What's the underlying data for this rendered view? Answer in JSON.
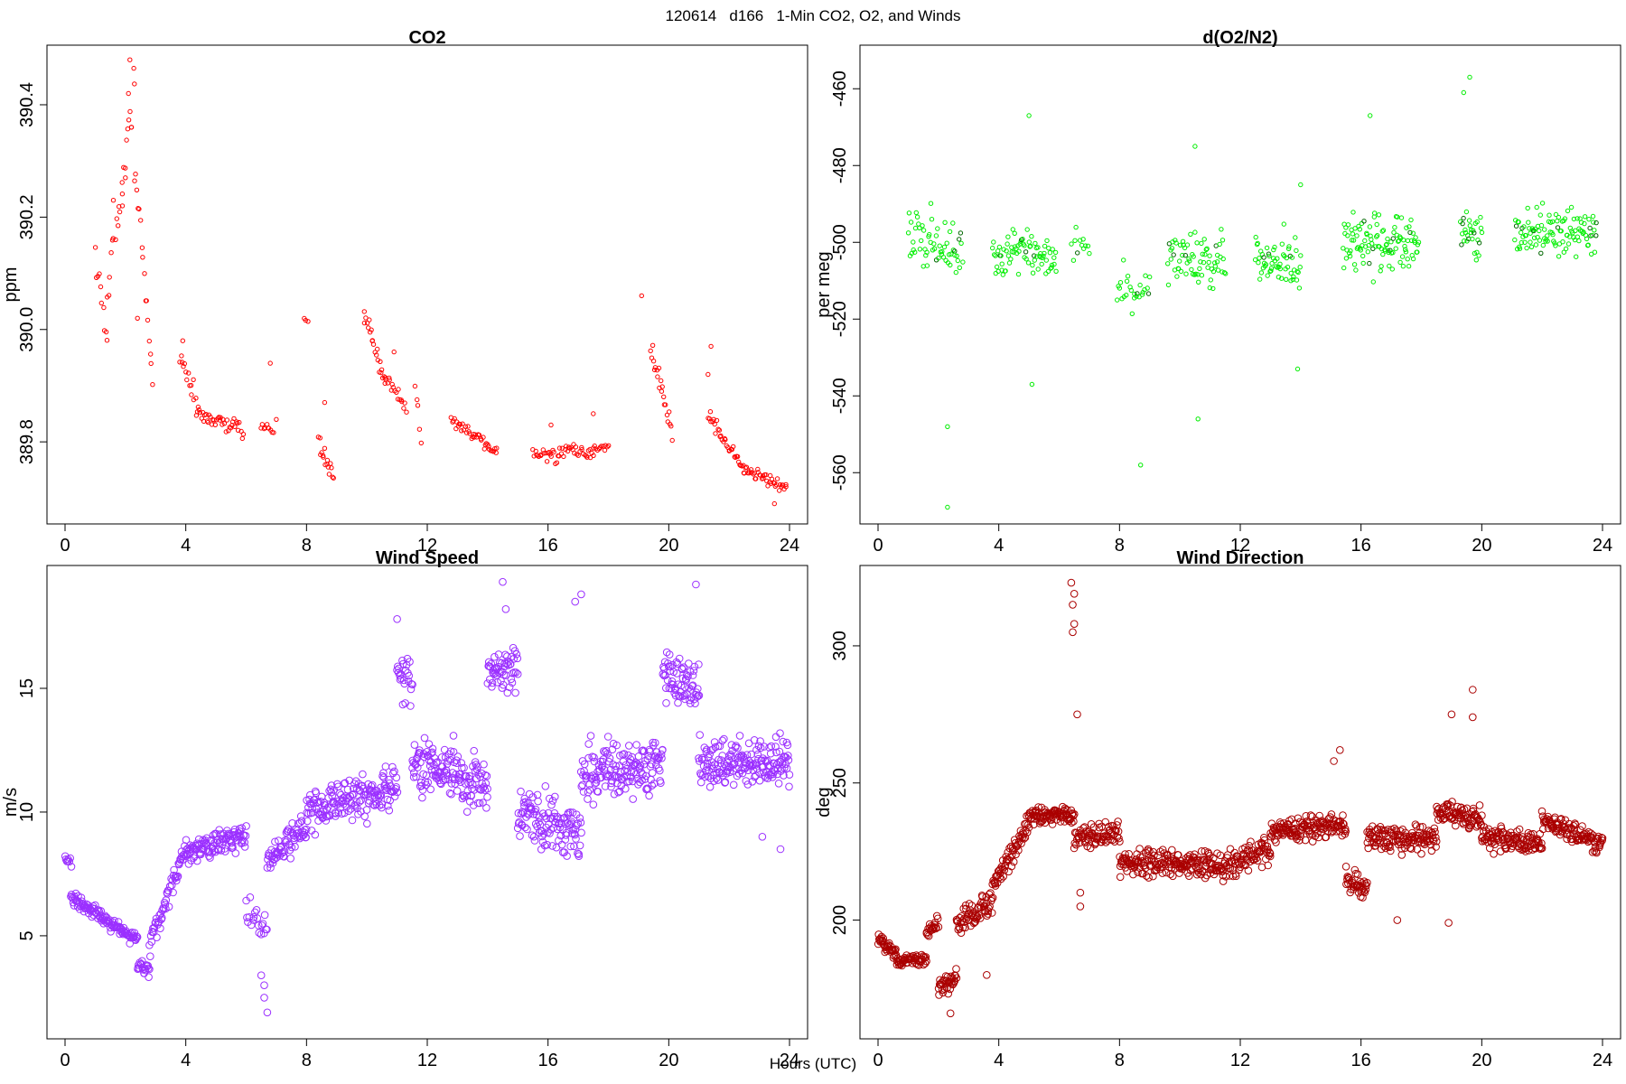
{
  "figure": {
    "title": "120614   d166   1-Min CO2, O2, and Winds",
    "xlabel": "Hours (UTC)"
  },
  "chart_data": [
    {
      "id": "co2",
      "type": "scatter",
      "title": "CO2",
      "xlabel": "",
      "ylabel": "ppm",
      "xlim": [
        0,
        24
      ],
      "ylim": [
        389.67,
        390.49
      ],
      "xticks": [
        0,
        4,
        8,
        12,
        16,
        20,
        24
      ],
      "yticks": [
        389.8,
        390.0,
        390.2,
        390.4
      ],
      "ytick_labels": [
        "389.8",
        "390.0",
        "390.2",
        "390.4"
      ],
      "color": "#ff0000",
      "marker_radius": 2.2,
      "segments": [
        {
          "x0": 1.0,
          "x1": 1.4,
          "n": 10,
          "y0": 390.12,
          "y1": 390.0,
          "spread": 0.05
        },
        {
          "x0": 1.4,
          "x1": 2.3,
          "n": 22,
          "y0": 390.05,
          "y1": 390.45,
          "spread": 0.08
        },
        {
          "x0": 2.3,
          "x1": 2.9,
          "n": 16,
          "y0": 390.3,
          "y1": 389.9,
          "spread": 0.04
        },
        {
          "x0": 3.8,
          "x1": 4.4,
          "n": 16,
          "y0": 389.96,
          "y1": 389.86,
          "spread": 0.03
        },
        {
          "x0": 4.4,
          "x1": 5.9,
          "n": 40,
          "y0": 389.85,
          "y1": 389.82,
          "spread": 0.025
        },
        {
          "x0": 6.5,
          "x1": 6.9,
          "n": 10,
          "y0": 389.83,
          "y1": 389.82,
          "spread": 0.015
        },
        {
          "x0": 7.9,
          "x1": 8.05,
          "n": 3,
          "y0": 390.02,
          "y1": 390.01,
          "spread": 0.01
        },
        {
          "x0": 8.4,
          "x1": 8.9,
          "n": 16,
          "y0": 389.8,
          "y1": 389.74,
          "spread": 0.03
        },
        {
          "x0": 9.9,
          "x1": 10.6,
          "n": 22,
          "y0": 390.03,
          "y1": 389.9,
          "spread": 0.03
        },
        {
          "x0": 10.6,
          "x1": 11.3,
          "n": 18,
          "y0": 389.92,
          "y1": 389.86,
          "spread": 0.02
        },
        {
          "x0": 11.6,
          "x1": 11.8,
          "n": 5,
          "y0": 389.9,
          "y1": 389.8,
          "spread": 0.03
        },
        {
          "x0": 12.8,
          "x1": 14.3,
          "n": 40,
          "y0": 389.84,
          "y1": 389.78,
          "spread": 0.02
        },
        {
          "x0": 15.5,
          "x1": 17.5,
          "n": 50,
          "y0": 389.78,
          "y1": 389.78,
          "spread": 0.025
        },
        {
          "x0": 17.5,
          "x1": 18.0,
          "n": 12,
          "y0": 389.79,
          "y1": 389.79,
          "spread": 0.02
        },
        {
          "x0": 19.4,
          "x1": 20.1,
          "n": 22,
          "y0": 389.97,
          "y1": 389.82,
          "spread": 0.03
        },
        {
          "x0": 21.3,
          "x1": 22.5,
          "n": 34,
          "y0": 389.85,
          "y1": 389.75,
          "spread": 0.025
        },
        {
          "x0": 22.5,
          "x1": 23.9,
          "n": 40,
          "y0": 389.75,
          "y1": 389.72,
          "spread": 0.02
        }
      ],
      "points": [
        [
          1.9,
          390.22
        ],
        [
          2.1,
          390.42
        ],
        [
          2.15,
          390.48
        ],
        [
          2.2,
          390.36
        ],
        [
          2.0,
          390.27
        ],
        [
          1.6,
          390.23
        ],
        [
          2.4,
          390.02
        ],
        [
          3.9,
          389.98
        ],
        [
          6.8,
          389.94
        ],
        [
          8.6,
          389.87
        ],
        [
          10.9,
          389.96
        ],
        [
          19.1,
          390.06
        ],
        [
          21.4,
          389.97
        ],
        [
          21.3,
          389.92
        ],
        [
          17.5,
          389.85
        ],
        [
          16.1,
          389.83
        ],
        [
          7.0,
          389.84
        ],
        [
          23.5,
          389.69
        ]
      ]
    },
    {
      "id": "o2",
      "type": "scatter",
      "title": "d(O2/N2)",
      "xlabel": "",
      "ylabel": "per meg",
      "xlim": [
        0,
        24
      ],
      "ylim": [
        -571,
        -451
      ],
      "xticks": [
        0,
        4,
        8,
        12,
        16,
        20,
        24
      ],
      "yticks": [
        -560,
        -540,
        -520,
        -500,
        -480,
        -460
      ],
      "ytick_labels": [
        "-560",
        "-540",
        "-520",
        "-500",
        "-480",
        "-460"
      ],
      "color": "#00ee00",
      "dark_color": "#006600",
      "marker_radius": 2.2,
      "segments": [
        {
          "x0": 1.0,
          "x1": 2.8,
          "n": 60,
          "y0": -500,
          "y1": -500,
          "spread": 12
        },
        {
          "x0": 3.8,
          "x1": 5.9,
          "n": 80,
          "y0": -503,
          "y1": -503,
          "spread": 10
        },
        {
          "x0": 6.4,
          "x1": 7.0,
          "n": 12,
          "y0": -500,
          "y1": -500,
          "spread": 8
        },
        {
          "x0": 7.9,
          "x1": 9.0,
          "n": 26,
          "y0": -512,
          "y1": -512,
          "spread": 10
        },
        {
          "x0": 9.6,
          "x1": 11.5,
          "n": 70,
          "y0": -505,
          "y1": -505,
          "spread": 12
        },
        {
          "x0": 12.5,
          "x1": 14.0,
          "n": 60,
          "y0": -505,
          "y1": -505,
          "spread": 11
        },
        {
          "x0": 15.4,
          "x1": 17.9,
          "n": 110,
          "y0": -500,
          "y1": -500,
          "spread": 12
        },
        {
          "x0": 19.3,
          "x1": 20.0,
          "n": 30,
          "y0": -498,
          "y1": -498,
          "spread": 12
        },
        {
          "x0": 21.1,
          "x1": 23.8,
          "n": 110,
          "y0": -497,
          "y1": -497,
          "spread": 10
        }
      ],
      "points": [
        [
          2.3,
          -569
        ],
        [
          2.3,
          -548
        ],
        [
          5.0,
          -467
        ],
        [
          8.7,
          -558
        ],
        [
          10.5,
          -475
        ],
        [
          10.6,
          -546
        ],
        [
          13.9,
          -533
        ],
        [
          16.3,
          -467
        ],
        [
          19.4,
          -461
        ],
        [
          19.6,
          -457
        ],
        [
          14.0,
          -485
        ],
        [
          5.1,
          -537
        ]
      ]
    },
    {
      "id": "wind_speed",
      "type": "scatter",
      "title": "Wind Speed",
      "xlabel": "",
      "ylabel": "m/s",
      "xlim": [
        0,
        24
      ],
      "ylim": [
        1.2,
        19.6
      ],
      "xticks": [
        0,
        4,
        8,
        12,
        16,
        20,
        24
      ],
      "yticks": [
        5,
        10,
        15
      ],
      "ytick_labels": [
        "5",
        "10",
        "15"
      ],
      "color": "#9b30ff",
      "marker_radius": 3.8,
      "segments": [
        {
          "x0": 0.0,
          "x1": 0.2,
          "n": 8,
          "y0": 8.1,
          "y1": 7.9,
          "spread": 0.3
        },
        {
          "x0": 0.2,
          "x1": 2.4,
          "n": 120,
          "y0": 6.6,
          "y1": 4.8,
          "spread": 0.45
        },
        {
          "x0": 2.4,
          "x1": 2.8,
          "n": 20,
          "y0": 3.8,
          "y1": 3.6,
          "spread": 0.4
        },
        {
          "x0": 2.8,
          "x1": 4.0,
          "n": 60,
          "y0": 4.6,
          "y1": 8.6,
          "spread": 0.8
        },
        {
          "x0": 4.0,
          "x1": 6.0,
          "n": 110,
          "y0": 8.4,
          "y1": 9.0,
          "spread": 0.9
        },
        {
          "x0": 6.0,
          "x1": 6.7,
          "n": 20,
          "y0": 6.0,
          "y1": 5.0,
          "spread": 1.4
        },
        {
          "x0": 6.7,
          "x1": 8.0,
          "n": 70,
          "y0": 8.0,
          "y1": 9.5,
          "spread": 1.1
        },
        {
          "x0": 8.0,
          "x1": 11.0,
          "n": 170,
          "y0": 10.0,
          "y1": 11.0,
          "spread": 1.5
        },
        {
          "x0": 11.0,
          "x1": 11.5,
          "n": 25,
          "y0": 15.5,
          "y1": 15.0,
          "spread": 1.6
        },
        {
          "x0": 11.5,
          "x1": 14.0,
          "n": 150,
          "y0": 12.0,
          "y1": 11.0,
          "spread": 2.0
        },
        {
          "x0": 14.0,
          "x1": 15.0,
          "n": 55,
          "y0": 15.5,
          "y1": 16.0,
          "spread": 1.6
        },
        {
          "x0": 15.0,
          "x1": 17.1,
          "n": 120,
          "y0": 10.0,
          "y1": 9.0,
          "spread": 1.8
        },
        {
          "x0": 17.1,
          "x1": 19.8,
          "n": 160,
          "y0": 11.5,
          "y1": 12.0,
          "spread": 1.8
        },
        {
          "x0": 19.8,
          "x1": 21.0,
          "n": 70,
          "y0": 15.5,
          "y1": 15.0,
          "spread": 1.5
        },
        {
          "x0": 21.0,
          "x1": 24.0,
          "n": 180,
          "y0": 12.0,
          "y1": 12.0,
          "spread": 1.6
        }
      ],
      "points": [
        [
          6.5,
          3.4
        ],
        [
          6.6,
          3.0
        ],
        [
          6.6,
          2.5
        ],
        [
          6.7,
          1.9
        ],
        [
          14.5,
          19.3
        ],
        [
          20.9,
          19.2
        ],
        [
          17.1,
          18.8
        ],
        [
          16.9,
          18.5
        ],
        [
          11.0,
          17.8
        ],
        [
          14.6,
          18.2
        ],
        [
          23.7,
          8.5
        ],
        [
          23.1,
          9.0
        ]
      ]
    },
    {
      "id": "wind_direction",
      "type": "scatter",
      "title": "Wind Direction",
      "xlabel": "",
      "ylabel": "deg",
      "xlim": [
        0,
        24
      ],
      "ylim": [
        160,
        326
      ],
      "xticks": [
        0,
        4,
        8,
        12,
        16,
        20,
        24
      ],
      "yticks": [
        200,
        250,
        300
      ],
      "ytick_labels": [
        "200",
        "250",
        "300"
      ],
      "color": "#aa0000",
      "marker_radius": 3.8,
      "segments": [
        {
          "x0": 0.0,
          "x1": 0.6,
          "n": 35,
          "y0": 193,
          "y1": 188,
          "spread": 4
        },
        {
          "x0": 0.6,
          "x1": 1.6,
          "n": 55,
          "y0": 185,
          "y1": 186,
          "spread": 4
        },
        {
          "x0": 1.6,
          "x1": 2.0,
          "n": 20,
          "y0": 196,
          "y1": 200,
          "spread": 6
        },
        {
          "x0": 2.0,
          "x1": 2.6,
          "n": 35,
          "y0": 176,
          "y1": 178,
          "spread": 7
        },
        {
          "x0": 2.6,
          "x1": 3.8,
          "n": 65,
          "y0": 198,
          "y1": 208,
          "spread": 8
        },
        {
          "x0": 3.8,
          "x1": 5.0,
          "n": 65,
          "y0": 213,
          "y1": 235,
          "spread": 7
        },
        {
          "x0": 5.0,
          "x1": 6.5,
          "n": 85,
          "y0": 238,
          "y1": 238,
          "spread": 5
        },
        {
          "x0": 6.5,
          "x1": 8.0,
          "n": 80,
          "y0": 230,
          "y1": 232,
          "spread": 7
        },
        {
          "x0": 8.0,
          "x1": 11.0,
          "n": 170,
          "y0": 221,
          "y1": 220,
          "spread": 8
        },
        {
          "x0": 11.0,
          "x1": 13.0,
          "n": 110,
          "y0": 218,
          "y1": 225,
          "spread": 9
        },
        {
          "x0": 13.0,
          "x1": 15.5,
          "n": 140,
          "y0": 232,
          "y1": 235,
          "spread": 8
        },
        {
          "x0": 15.5,
          "x1": 16.2,
          "n": 40,
          "y0": 215,
          "y1": 212,
          "spread": 8
        },
        {
          "x0": 16.2,
          "x1": 18.5,
          "n": 130,
          "y0": 230,
          "y1": 230,
          "spread": 8
        },
        {
          "x0": 18.5,
          "x1": 20.0,
          "n": 85,
          "y0": 240,
          "y1": 236,
          "spread": 7
        },
        {
          "x0": 20.0,
          "x1": 22.0,
          "n": 110,
          "y0": 230,
          "y1": 228,
          "spread": 7
        },
        {
          "x0": 22.0,
          "x1": 24.0,
          "n": 110,
          "y0": 236,
          "y1": 228,
          "spread": 7
        }
      ],
      "points": [
        [
          6.4,
          323
        ],
        [
          6.5,
          319
        ],
        [
          6.45,
          315
        ],
        [
          6.5,
          308
        ],
        [
          6.45,
          305
        ],
        [
          6.6,
          275
        ],
        [
          6.7,
          210
        ],
        [
          6.7,
          205
        ],
        [
          19.7,
          284
        ],
        [
          19.7,
          274
        ],
        [
          19.0,
          275
        ],
        [
          15.3,
          262
        ],
        [
          15.1,
          258
        ],
        [
          3.6,
          180
        ],
        [
          2.4,
          166
        ],
        [
          17.2,
          200
        ],
        [
          18.9,
          199
        ]
      ]
    }
  ]
}
